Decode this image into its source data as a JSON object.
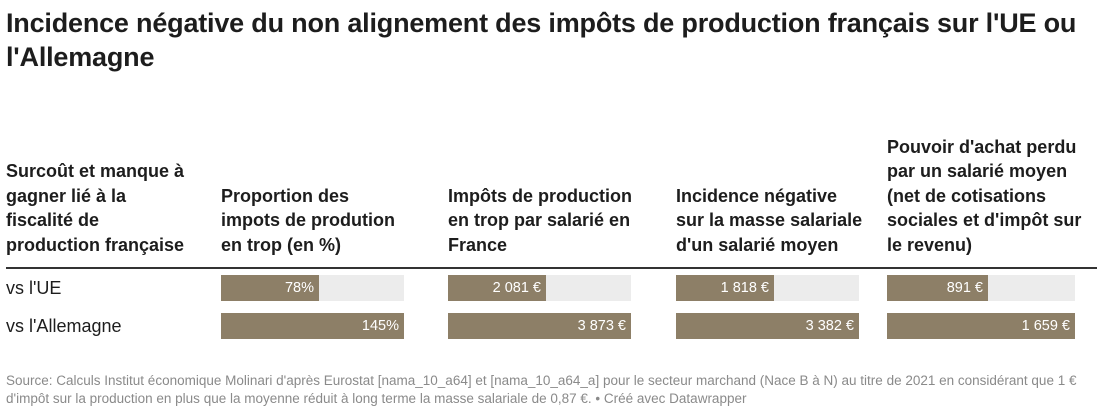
{
  "title": "Incidence négative du non alignement des impôts de production français sur l'UE ou l'Allemagne",
  "chart_data": {
    "type": "table",
    "row_header": "Surcoût et manque à gagner lié à la fiscalité de production française",
    "columns": [
      {
        "label": "Proportion des impots de prodution en trop (en %)",
        "max": 145
      },
      {
        "label": "Impôts de production en trop par salarié en France",
        "max": 3873
      },
      {
        "label": "Incidence négative sur la masse salariale d'un salarié moyen",
        "max": 3382
      },
      {
        "label": "Pouvoir d'achat perdu par un salarié moyen (net de cotisations sociales et d'impôt sur le revenu)",
        "max": 1659
      }
    ],
    "rows": [
      {
        "label": "vs l'UE",
        "values": [
          78,
          2081,
          1818,
          891
        ],
        "display": [
          "78%",
          "2 081 €",
          "1 818 €",
          "891 €"
        ]
      },
      {
        "label": "vs l'Allemagne",
        "values": [
          145,
          3873,
          3382,
          1659
        ],
        "display": [
          "145%",
          "3 873 €",
          "3 382 €",
          "1 659 €"
        ]
      }
    ],
    "colors": {
      "bar": "#8d7f67",
      "track": "#ececec"
    }
  },
  "source": "Source: Calculs Institut économique Molinari d'après Eurostat [nama_10_a64] et [nama_10_a64_a] pour le secteur marchand (Nace B à N) au titre de 2021 en considérant que 1 € d'impôt sur la production en plus que la moyenne réduit à long terme la masse salariale de 0,87 €. • Créé avec Datawrapper"
}
